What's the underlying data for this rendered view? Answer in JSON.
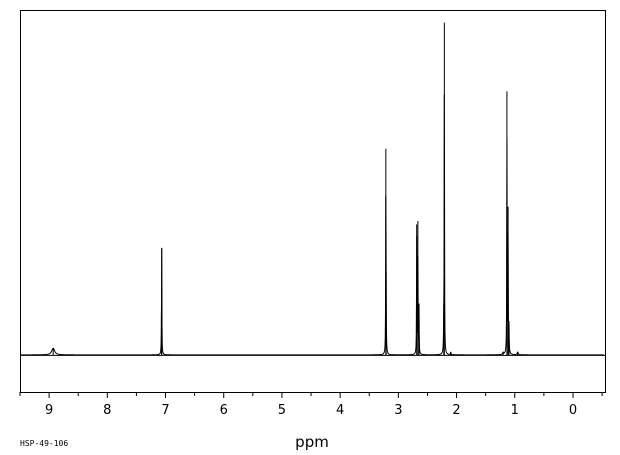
{
  "chart_data": {
    "type": "line",
    "title": "",
    "xlabel": "ppm",
    "ylabel": "",
    "xlim": [
      9.5,
      -0.55
    ],
    "x_reversed": true,
    "ylim": [
      -0.14,
      1.3
    ],
    "grid": false,
    "ticks": [
      9,
      8,
      7,
      6,
      5,
      4,
      3,
      2,
      1,
      0
    ],
    "tick_labels": [
      "9",
      "8",
      "7",
      "6",
      "5",
      "4",
      "3",
      "2",
      "1",
      "0"
    ],
    "spectrum_code": "HSP-49-106",
    "peaks": [
      {
        "ppm": 8.93,
        "height": 0.025,
        "width": 0.03
      },
      {
        "ppm": 7.065,
        "height": 0.38,
        "width": 0.003
      },
      {
        "ppm": 7.07,
        "height": 0.06,
        "width": 0.004
      },
      {
        "ppm": 3.215,
        "height": 0.73,
        "width": 0.003
      },
      {
        "ppm": 3.21,
        "height": 0.12,
        "width": 0.004
      },
      {
        "ppm": 2.685,
        "height": 0.48,
        "width": 0.003
      },
      {
        "ppm": 2.665,
        "height": 0.49,
        "width": 0.003
      },
      {
        "ppm": 2.645,
        "height": 0.18,
        "width": 0.003
      },
      {
        "ppm": 2.21,
        "height": 1.24,
        "width": 0.003
      },
      {
        "ppm": 2.22,
        "height": 0.09,
        "width": 0.004
      },
      {
        "ppm": 2.1,
        "height": 0.01,
        "width": 0.005
      },
      {
        "ppm": 1.135,
        "height": 0.98,
        "width": 0.003
      },
      {
        "ppm": 1.115,
        "height": 0.53,
        "width": 0.003
      },
      {
        "ppm": 1.1,
        "height": 0.1,
        "width": 0.004
      },
      {
        "ppm": 1.2,
        "height": 0.008,
        "width": 0.01
      },
      {
        "ppm": 0.95,
        "height": 0.01,
        "width": 0.01
      }
    ]
  }
}
